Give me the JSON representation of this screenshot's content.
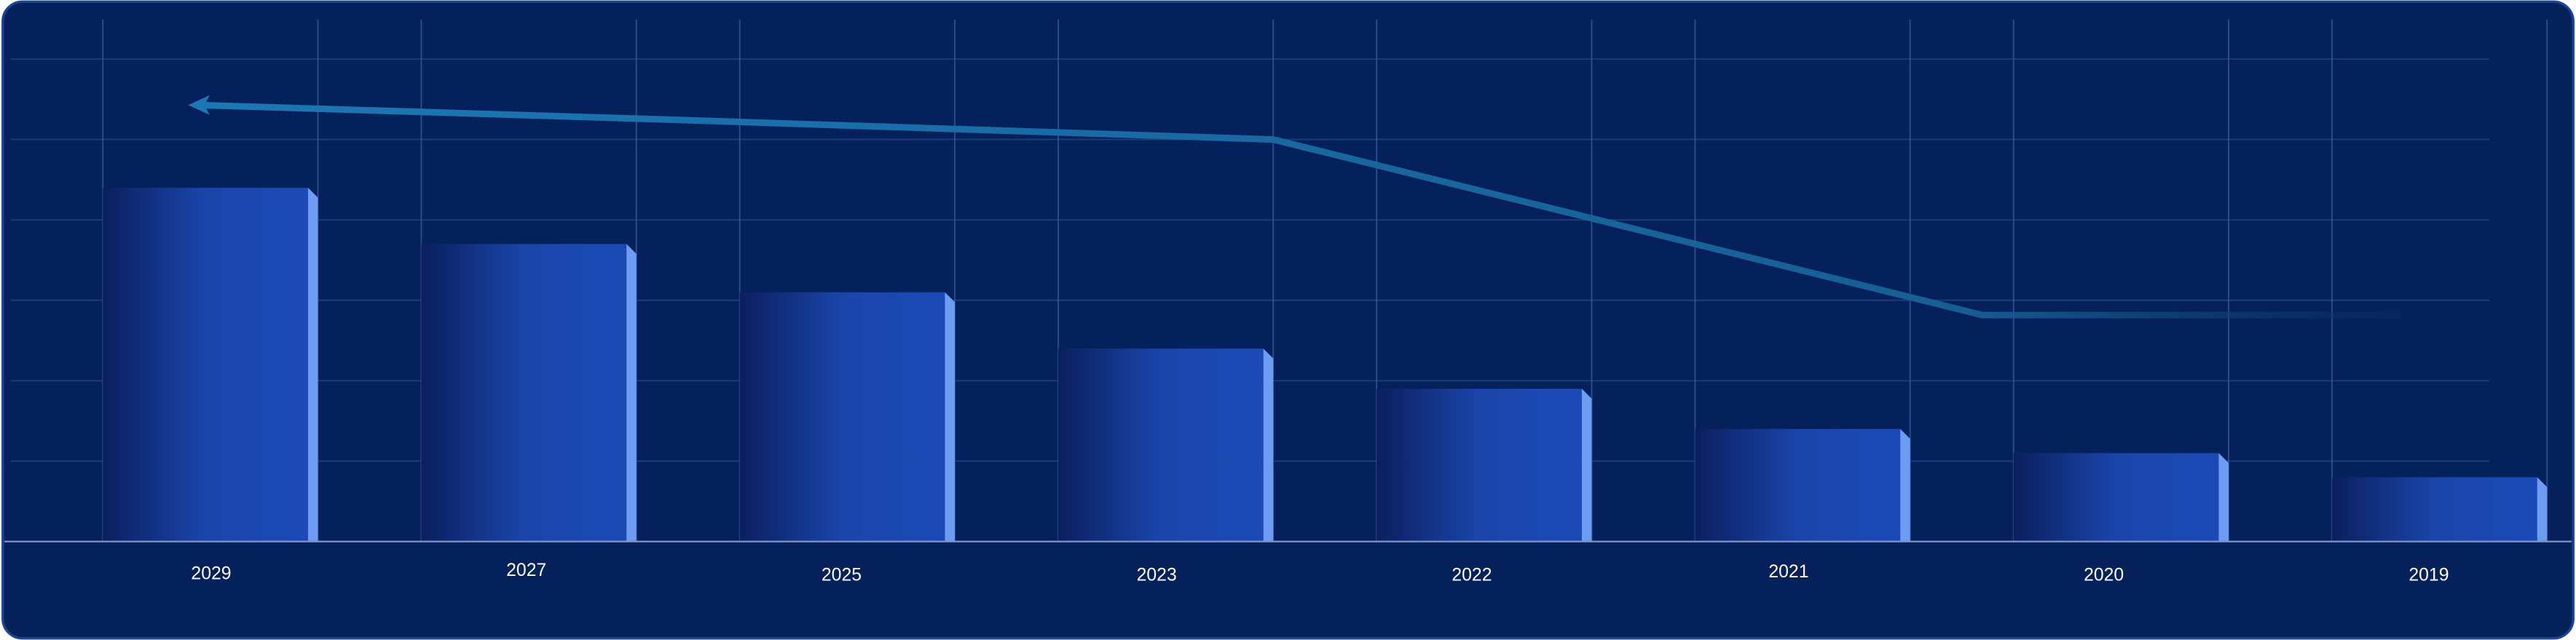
{
  "chart_data": {
    "type": "bar",
    "categories": [
      "2029",
      "2027",
      "2025",
      "2023",
      "2022",
      "2021",
      "2020",
      "2019"
    ],
    "values": [
      4.4,
      3.7,
      3.1,
      2.4,
      1.9,
      1.4,
      1.1,
      0.8
    ],
    "color": "#1c4ab5",
    "ylim": [
      0,
      6
    ],
    "yticks": [
      0,
      1,
      2,
      3,
      4,
      5,
      6
    ],
    "grid": true
  }
}
